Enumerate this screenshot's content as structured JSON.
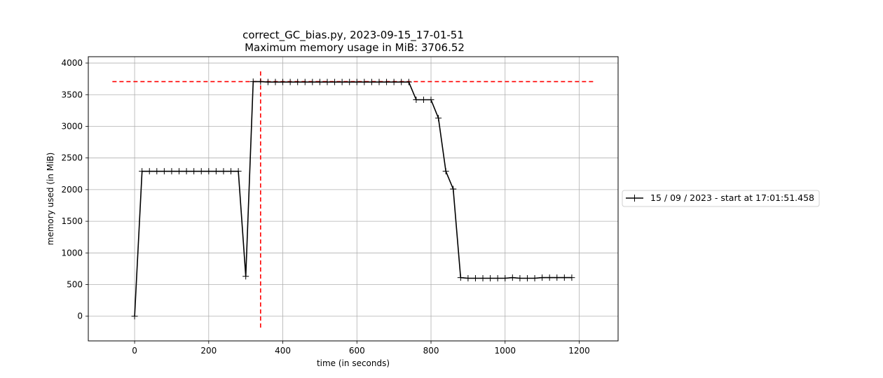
{
  "chart_data": {
    "type": "line",
    "title": "correct_GC_bias.py, 2023-09-15_17-01-51",
    "subtitle": "Maximum memory usage in MiB: 3706.52",
    "xlabel": "time (in seconds)",
    "ylabel": "memory used (in MiB)",
    "xlim": [
      -125,
      1305
    ],
    "ylim": [
      -390,
      4100
    ],
    "xticks": [
      0,
      200,
      400,
      600,
      800,
      1000,
      1200
    ],
    "yticks": [
      0,
      500,
      1000,
      1500,
      2000,
      2500,
      3000,
      3500,
      4000
    ],
    "grid": true,
    "legend_position": "right",
    "series": [
      {
        "name": "15 / 09 / 2023 - start at 17:01:51.458",
        "color": "#000000",
        "marker": "+",
        "x": [
          0,
          20,
          40,
          60,
          80,
          100,
          120,
          140,
          160,
          180,
          200,
          220,
          240,
          260,
          280,
          300,
          320,
          340,
          360,
          380,
          400,
          420,
          440,
          460,
          480,
          500,
          520,
          540,
          560,
          580,
          600,
          620,
          640,
          660,
          680,
          700,
          720,
          740,
          760,
          780,
          800,
          820,
          840,
          860,
          880,
          900,
          920,
          940,
          960,
          980,
          1000,
          1020,
          1040,
          1060,
          1080,
          1100,
          1120,
          1140,
          1160,
          1180
        ],
        "y": [
          0,
          2290,
          2290,
          2290,
          2290,
          2290,
          2290,
          2290,
          2290,
          2290,
          2290,
          2290,
          2290,
          2290,
          2290,
          630,
          3706,
          3706,
          3700,
          3700,
          3700,
          3700,
          3700,
          3700,
          3700,
          3700,
          3700,
          3700,
          3700,
          3700,
          3700,
          3700,
          3700,
          3700,
          3700,
          3700,
          3700,
          3700,
          3420,
          3420,
          3420,
          3130,
          2290,
          2010,
          610,
          600,
          600,
          600,
          600,
          600,
          600,
          610,
          600,
          600,
          600,
          610,
          610,
          610,
          610,
          610
        ]
      }
    ],
    "reference_lines": [
      {
        "orientation": "horizontal",
        "value": 3706.52,
        "from": -60,
        "to": 1240,
        "color": "#ff0000",
        "style": "dashed"
      },
      {
        "orientation": "vertical",
        "value": 340,
        "from": -180,
        "to": 3890,
        "color": "#ff0000",
        "style": "dashed"
      }
    ]
  }
}
